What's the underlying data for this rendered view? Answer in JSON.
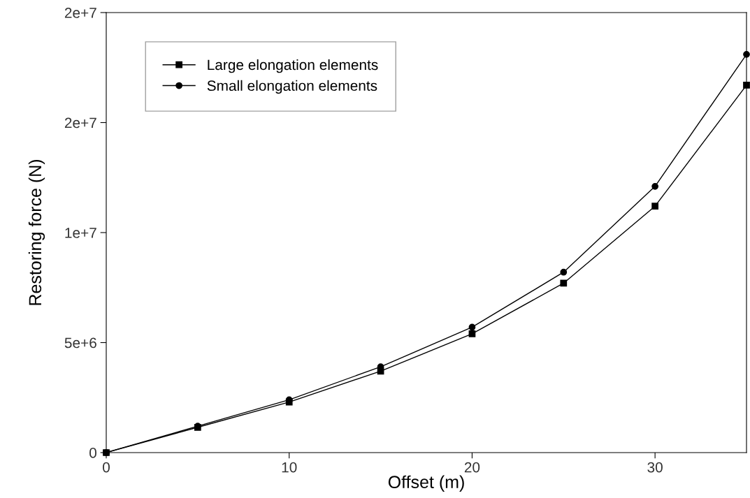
{
  "chart_data": {
    "type": "line",
    "xlabel": "Offset (m)",
    "ylabel": "Restoring force (N)",
    "x": [
      0,
      5,
      10,
      15,
      20,
      25,
      30,
      35
    ],
    "series": [
      {
        "name": "Large elongation elements",
        "color": "#000000",
        "marker": "square",
        "values": [
          0,
          1150000,
          2300000,
          3700000,
          5400000,
          7700000,
          11200000,
          16700000
        ]
      },
      {
        "name": "Small elongation elements",
        "color": "#000000",
        "marker": "circle",
        "values": [
          0,
          1200000,
          2400000,
          3900000,
          5700000,
          8200000,
          12100000,
          18100000
        ]
      }
    ],
    "xlim": [
      0,
      35
    ],
    "xticks": [
      0,
      10,
      20,
      30
    ],
    "ylim": [
      0,
      20000000
    ],
    "yticks": [
      0,
      {
        "value": 5000000,
        "label": "5e+6"
      },
      {
        "value": 10000000,
        "label": "1e+7"
      },
      {
        "value": 15000000,
        "label": "2e+7"
      },
      {
        "value": 20000000,
        "label": "2e+7"
      }
    ],
    "legend": "top left",
    "grid": false,
    "line_style": "solid"
  }
}
